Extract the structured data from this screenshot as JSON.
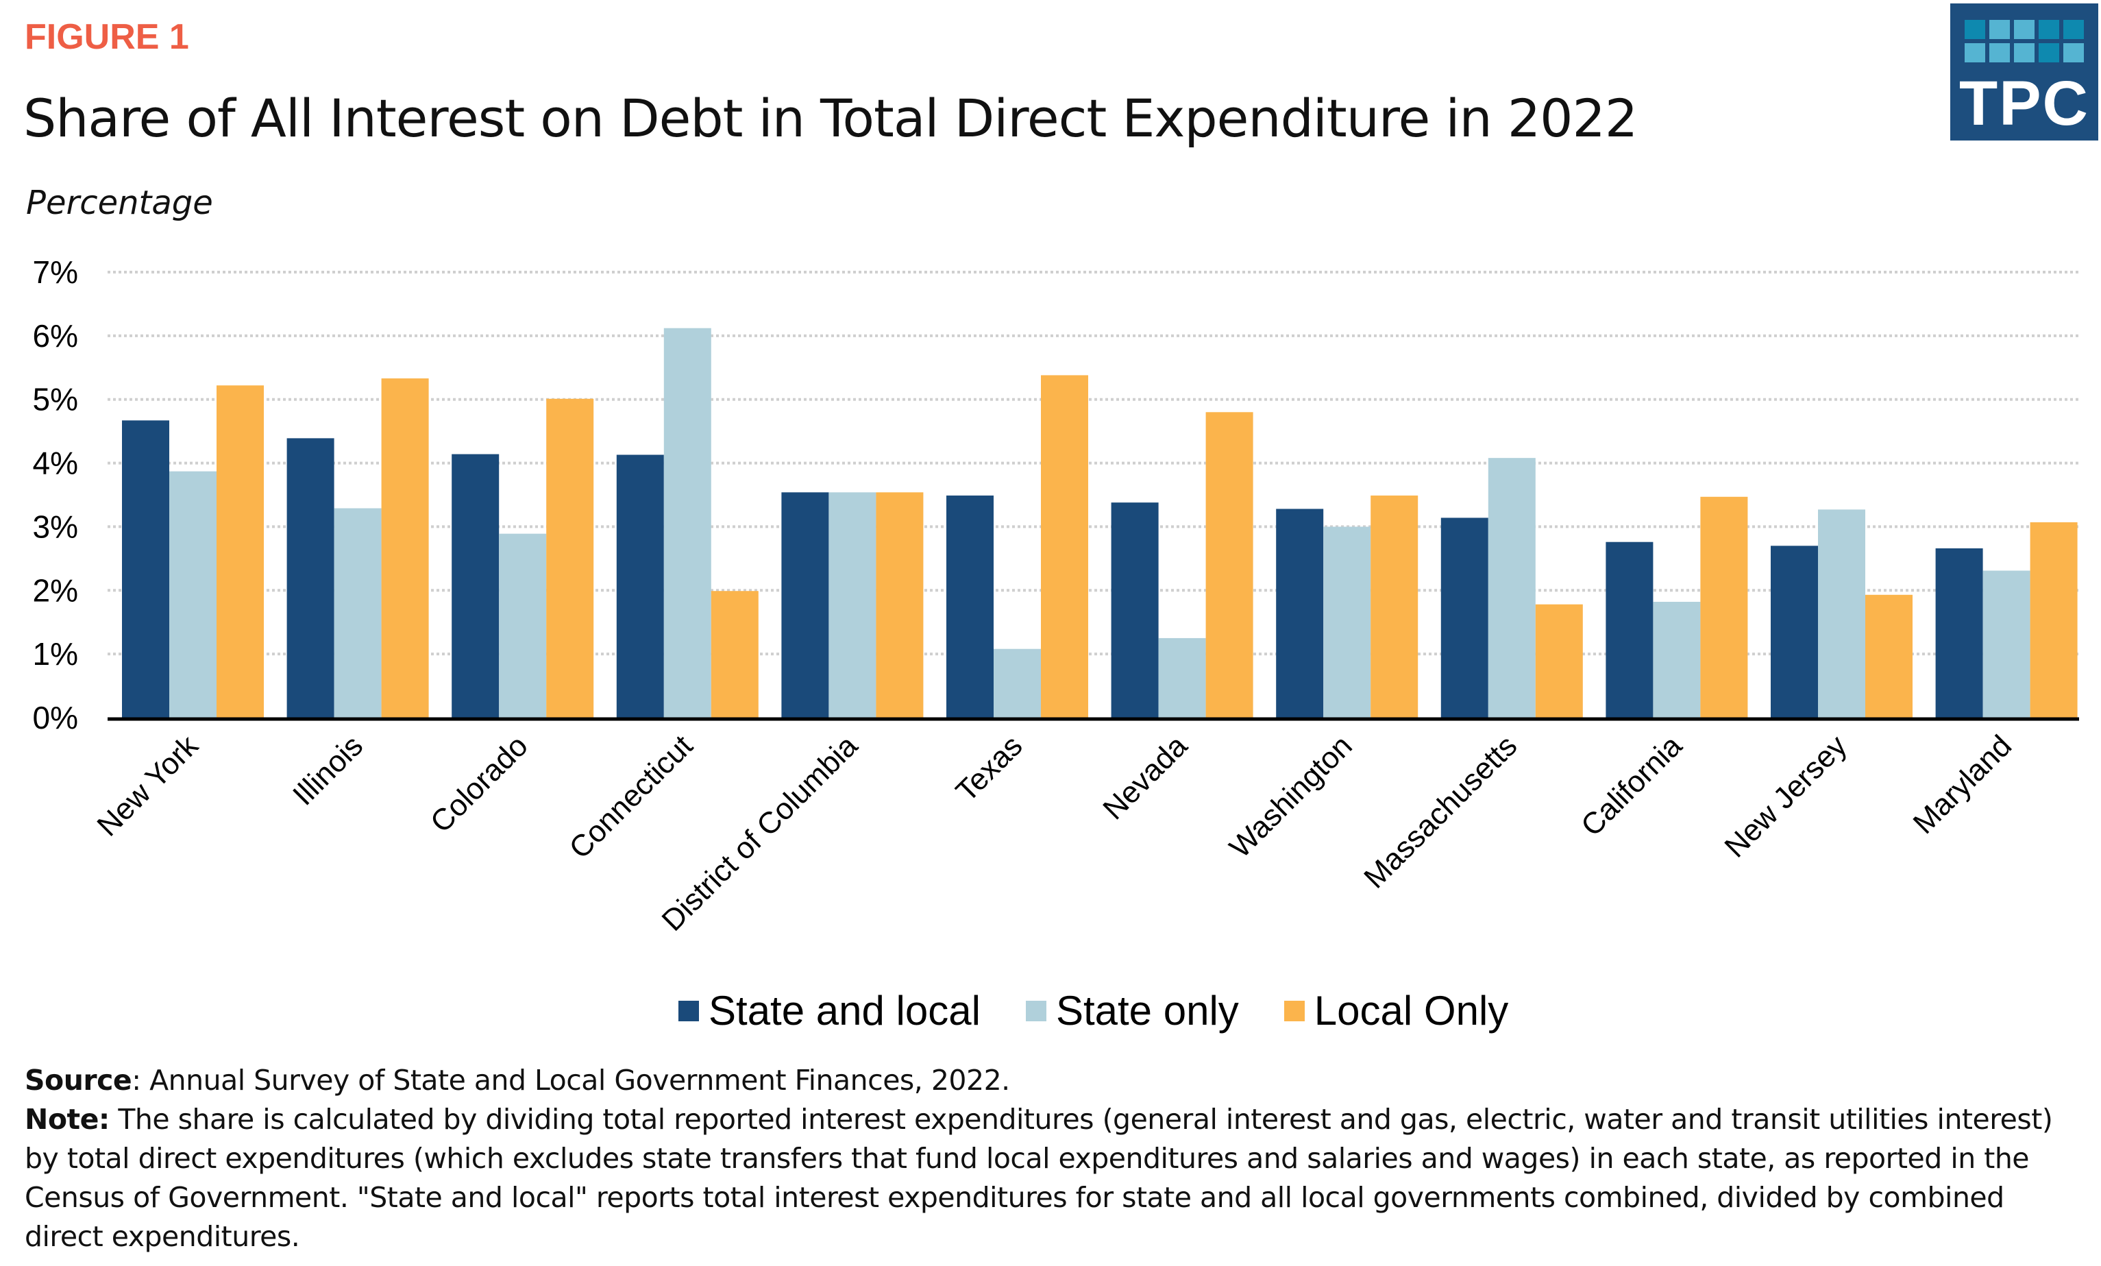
{
  "figure_label": "FIGURE 1",
  "logo": {
    "text": "TPC",
    "icon": "tpc-logo-grid-icon",
    "colors": {
      "background": "#1D4E7E",
      "tile_dark": "#0E89AF",
      "tile_light": "#55B4D2"
    },
    "tile_pattern": [
      [
        "dark",
        "light",
        "light",
        "dark",
        "dark"
      ],
      [
        "light",
        "light",
        "light",
        "dark",
        "light"
      ]
    ]
  },
  "chart_data": {
    "type": "bar",
    "title": "Share of All Interest on Debt in Total Direct Expenditure in 2022",
    "ylabel": "Percentage",
    "xlabel": "",
    "ylim": [
      0,
      7
    ],
    "yticks": [
      0,
      1,
      2,
      3,
      4,
      5,
      6,
      7
    ],
    "ytick_labels": [
      "0%",
      "1%",
      "2%",
      "3%",
      "4%",
      "5%",
      "6%",
      "7%"
    ],
    "grid": "horizontal-dotted",
    "legend_position": "bottom-center",
    "categories": [
      "New York",
      "Illinois",
      "Colorado",
      "Connecticut",
      "District of Columbia",
      "Texas",
      "Nevada",
      "Washington",
      "Massachusetts",
      "California",
      "New Jersey",
      "Maryland"
    ],
    "series": [
      {
        "name": "State and local",
        "color": "#1A4A7A",
        "values": [
          4.67,
          4.39,
          4.14,
          4.13,
          3.54,
          3.49,
          3.38,
          3.28,
          3.14,
          2.76,
          2.7,
          2.66
        ]
      },
      {
        "name": "State only",
        "color": "#B0D0DB",
        "values": [
          3.87,
          3.29,
          2.89,
          6.12,
          3.54,
          1.08,
          1.25,
          3.0,
          4.08,
          1.82,
          3.27,
          2.31
        ]
      },
      {
        "name": "Local Only",
        "color": "#FBB44C",
        "values": [
          5.22,
          5.33,
          5.01,
          1.99,
          3.54,
          5.38,
          4.8,
          3.49,
          1.78,
          3.47,
          1.93,
          3.07
        ]
      }
    ]
  },
  "notes": {
    "source_label": "Source",
    "source_text": ": Annual Survey of State and Local Government Finances, 2022.",
    "note_label": "Note:",
    "note_text": " The share is calculated by dividing total reported interest expenditures (general interest and gas, electric, water and transit utilities interest) by total direct expenditures (which excludes state transfers that fund local expenditures and salaries and wages) in each state, as reported in the Census of Government. \"State and local\" reports total interest expenditures for state and all local governments combined, divided by combined direct expenditures."
  }
}
